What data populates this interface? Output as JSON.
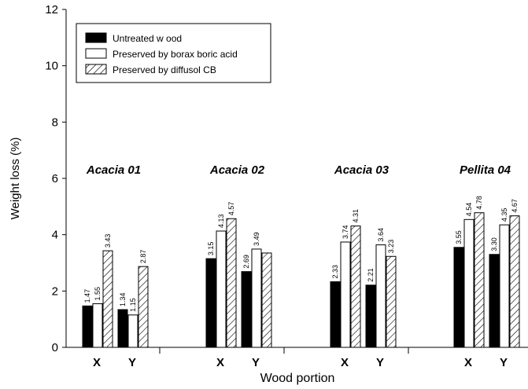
{
  "chart_data": {
    "type": "bar",
    "title": "",
    "xlabel": "Wood portion",
    "ylabel": "Weight loss (%)",
    "ylim": [
      0,
      12
    ],
    "yticks": [
      "0",
      "2",
      "4",
      "6",
      "8",
      "10",
      "12"
    ],
    "legend_position": "top-left",
    "series": [
      {
        "name": "Untreated w ood",
        "fill": "black"
      },
      {
        "name": "Preserved by borax boric acid",
        "fill": "white"
      },
      {
        "name": "Preserved by diffusol CB",
        "fill": "hatched"
      }
    ],
    "groups": [
      {
        "label": "Acacia 01",
        "portions": [
          {
            "label": "X",
            "values": [
              1.47,
              1.55,
              3.43
            ],
            "value_labels": [
              "1.47",
              "1.55",
              "3.43"
            ]
          },
          {
            "label": "Y",
            "values": [
              1.34,
              1.15,
              2.87
            ],
            "value_labels": [
              "1.34",
              "1.15",
              "2.87"
            ]
          }
        ]
      },
      {
        "label": "Acacia 02",
        "portions": [
          {
            "label": "X",
            "values": [
              3.15,
              4.13,
              4.57
            ],
            "value_labels": [
              "3.15",
              "4.13",
              "4.57"
            ]
          },
          {
            "label": "Y",
            "values": [
              2.69,
              3.49,
              3.35
            ],
            "value_labels": [
              "2.69",
              "3.49",
              ""
            ]
          }
        ]
      },
      {
        "label": "Acacia 03",
        "portions": [
          {
            "label": "X",
            "values": [
              2.33,
              3.74,
              4.31
            ],
            "value_labels": [
              "2.33",
              "3.74",
              "4.31"
            ]
          },
          {
            "label": "Y",
            "values": [
              2.21,
              3.64,
              3.23
            ],
            "value_labels": [
              "2.21",
              "3.64",
              "3.23"
            ]
          }
        ]
      },
      {
        "label": "Pellita 04",
        "portions": [
          {
            "label": "X",
            "values": [
              3.55,
              4.54,
              4.78
            ],
            "value_labels": [
              "3.55",
              "4.54",
              "4.78"
            ]
          },
          {
            "label": "Y",
            "values": [
              3.3,
              4.35,
              4.67
            ],
            "value_labels": [
              "3.30",
              "4.35",
              "4.67"
            ]
          }
        ]
      }
    ]
  }
}
